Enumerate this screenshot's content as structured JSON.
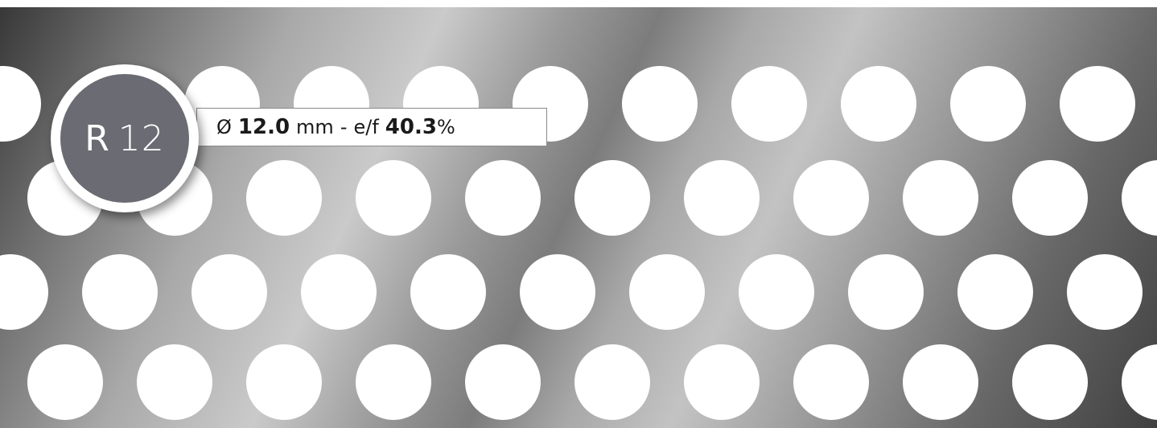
{
  "product": {
    "code_letter": "R",
    "code_number": "12",
    "diameter_symbol": "Ø",
    "diameter_value": "12.0",
    "diameter_unit": "mm",
    "separator": "-",
    "open_area_label": "e/f",
    "open_area_value": "40.3",
    "open_area_unit": "%"
  },
  "colors": {
    "badge_fill": "#6b6b73",
    "badge_ring": "#ffffff",
    "hole": "#ffffff",
    "metal_dark": "#383838",
    "metal_light": "#cacaca"
  }
}
